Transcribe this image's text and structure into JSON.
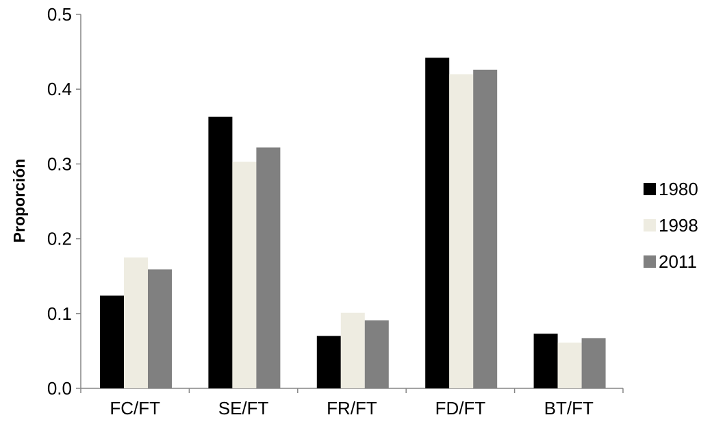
{
  "chart_data": {
    "type": "bar",
    "title": "",
    "xlabel": "",
    "ylabel": "Proporción",
    "categories": [
      "FC/FT",
      "SE/FT",
      "FR/FT",
      "FD/FT",
      "BT/FT"
    ],
    "series": [
      {
        "name": "1980",
        "color": "#000000",
        "values": [
          0.124,
          0.363,
          0.07,
          0.442,
          0.073
        ]
      },
      {
        "name": "1998",
        "color": "#eeece1",
        "values": [
          0.175,
          0.303,
          0.101,
          0.42,
          0.061
        ]
      },
      {
        "name": "2011",
        "color": "#808080",
        "values": [
          0.159,
          0.322,
          0.091,
          0.426,
          0.067
        ]
      }
    ],
    "ylim": [
      0,
      0.5
    ],
    "yticks": [
      "0.0",
      "0.1",
      "0.2",
      "0.3",
      "0.4",
      "0.5"
    ],
    "grid": false,
    "legend_position": "right"
  }
}
